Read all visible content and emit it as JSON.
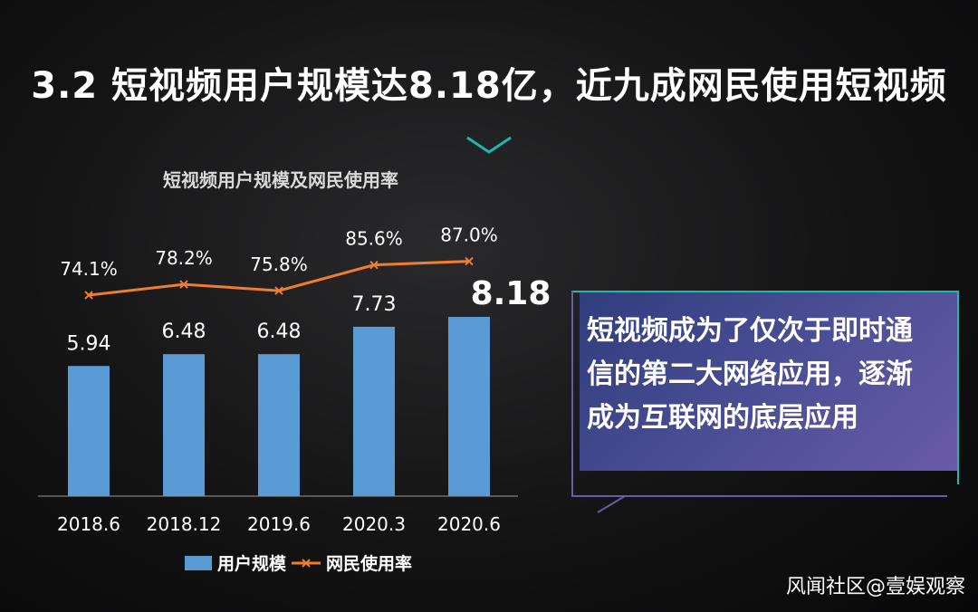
{
  "heading": "3.2 短视频用户规模达8.18亿，近九成网民使用短视频",
  "card": {
    "lines": [
      "短视频成为了仅次于即时通",
      "信的第二大网络应用，逐渐",
      "成为互联网的底层应用"
    ]
  },
  "watermark": "风闻社区@壹娱观察",
  "colors": {
    "bar": "#5b9bd5",
    "line": "#ed7d31",
    "accent_teal": "#1fb7b0",
    "card_start": "#2f3d7e",
    "card_end": "#6a5aa8"
  },
  "chart_data": {
    "type": "bar",
    "title": "短视频用户规模及网民使用率",
    "categories": [
      "2018.6",
      "2018.12",
      "2019.6",
      "2020.3",
      "2020.6"
    ],
    "series": [
      {
        "name": "用户规模",
        "type": "bar",
        "values": [
          5.94,
          6.48,
          6.48,
          7.73,
          8.18
        ],
        "labels": [
          "5.94",
          "6.48",
          "6.48",
          "7.73",
          "8.18"
        ]
      },
      {
        "name": "网民使用率",
        "type": "line",
        "values": [
          74.1,
          78.2,
          75.8,
          85.6,
          87.0
        ],
        "labels": [
          "74.1%",
          "78.2%",
          "75.8%",
          "85.6%",
          "87.0%"
        ]
      }
    ],
    "highlight_index": 4,
    "legend": "bottom",
    "grid": false
  }
}
